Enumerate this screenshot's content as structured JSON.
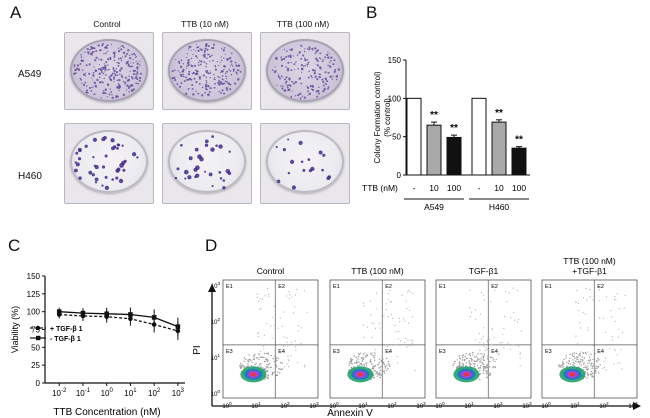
{
  "panel_a": {
    "letter": "A",
    "columns": [
      "Control",
      "TTB (10 nM)",
      "TTB (100 nM)"
    ],
    "rows": [
      "A549",
      "H460"
    ]
  },
  "panel_b": {
    "letter": "B"
  },
  "panel_c": {
    "letter": "C"
  },
  "panel_d": {
    "letter": "D",
    "titles": [
      "Control",
      "TTB (100 nM)",
      "TGF-β1",
      "TTB (100 nM)",
      "+TGF-β1"
    ],
    "quadrants": [
      "E1",
      "E2",
      "E3",
      "E4"
    ],
    "xlabel": "Annexin V",
    "ylabel": "PI",
    "ticks_exp": [
      "0",
      "1",
      "2",
      "3"
    ]
  },
  "chart_data": [
    {
      "type": "bar",
      "panel": "B",
      "ylabel": "Colony Formation (% control)",
      "ylim": [
        0,
        150
      ],
      "yticks": [
        "0",
        "50",
        "100",
        "150"
      ],
      "ttb_label": "TTB (nM)",
      "groups": [
        "A549",
        "H460"
      ],
      "categories": [
        "-",
        "10",
        "100",
        "-",
        "10",
        "100"
      ],
      "values": [
        100,
        65,
        49,
        100,
        69,
        35
      ],
      "errors": [
        0,
        4,
        3,
        0,
        3,
        2
      ],
      "annotations": [
        "",
        "**",
        "**",
        "",
        "**",
        "**"
      ],
      "colors": [
        "#ffffff",
        "#a9a9a9",
        "#111111",
        "#ffffff",
        "#a9a9a9",
        "#111111"
      ]
    },
    {
      "type": "line",
      "panel": "C",
      "ylabel": "Viability (%)",
      "xlabel": "TTB Concentration (nM)",
      "ylim": [
        0,
        150
      ],
      "yticks": [
        "0",
        "25",
        "50",
        "75",
        "100",
        "125",
        "150"
      ],
      "x": [
        0.01,
        0.1,
        1,
        10,
        100,
        1000
      ],
      "xticks_exp": [
        "-2",
        "-1",
        "0",
        "1",
        "2",
        "3"
      ],
      "series": [
        {
          "name": "+ TGF-β 1",
          "values": [
            96,
            94,
            93,
            90,
            82,
            73
          ],
          "marker": "circle",
          "dash": true
        },
        {
          "name": "- TGF-β 1",
          "values": [
            100,
            98,
            97,
            96,
            92,
            79
          ],
          "marker": "square",
          "dash": false
        }
      ]
    }
  ]
}
